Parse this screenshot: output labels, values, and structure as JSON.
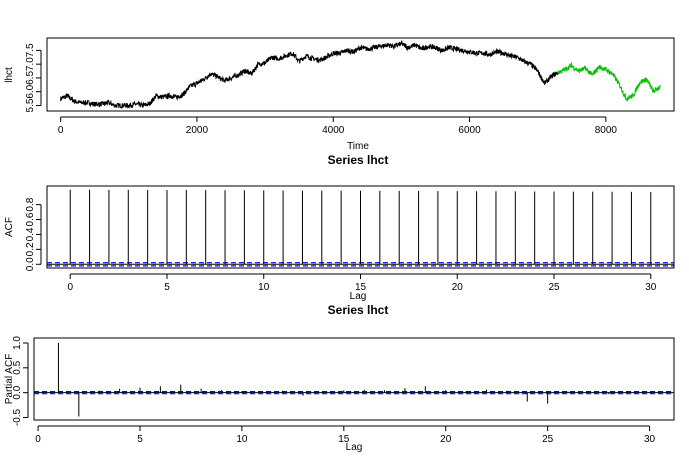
{
  "chart_data": [
    {
      "type": "line",
      "title": "",
      "xlabel": "Time",
      "ylabel": "lhct",
      "xlim": [
        -200,
        9000
      ],
      "ylim": [
        5.3,
        7.95
      ],
      "x_ticks": [
        0,
        2000,
        4000,
        6000,
        8000
      ],
      "y_ticks": [
        5.5,
        6.0,
        6.5,
        7.0,
        7.5
      ],
      "y_tick_labels": [
        "5.5",
        "6.0",
        "6.5",
        "7.0",
        "7.5"
      ],
      "series": [
        {
          "color": "#000000",
          "x": [
            0,
            100,
            200,
            300,
            400,
            500,
            600,
            700,
            800,
            900,
            1000,
            1100,
            1200,
            1300,
            1400,
            1500,
            1600,
            1700,
            1800,
            1900,
            2000,
            2100,
            2200,
            2300,
            2400,
            2500,
            2600,
            2700,
            2800,
            2900,
            3000,
            3100,
            3200,
            3300,
            3400,
            3500,
            3600,
            3700,
            3800,
            3900,
            4000,
            4100,
            4200,
            4300,
            4400,
            4500,
            4600,
            4700,
            4800,
            4900,
            5000,
            5100,
            5200,
            5300,
            5400,
            5500,
            5600,
            5700,
            5800,
            5900,
            6000,
            6100,
            6200,
            6300,
            6400,
            6500,
            6600,
            6700,
            6800,
            6900,
            7000,
            7100,
            7200,
            7300
          ],
          "y": [
            5.75,
            5.85,
            5.65,
            5.6,
            5.6,
            5.55,
            5.55,
            5.6,
            5.5,
            5.5,
            5.5,
            5.55,
            5.5,
            5.55,
            5.85,
            5.8,
            5.85,
            5.8,
            5.9,
            6.2,
            6.3,
            6.45,
            6.65,
            6.55,
            6.4,
            6.5,
            6.6,
            6.75,
            6.65,
            7.0,
            7.05,
            7.25,
            7.2,
            7.3,
            7.4,
            7.1,
            7.3,
            7.2,
            7.15,
            7.25,
            7.4,
            7.4,
            7.5,
            7.45,
            7.6,
            7.55,
            7.6,
            7.65,
            7.7,
            7.65,
            7.75,
            7.6,
            7.7,
            7.55,
            7.65,
            7.6,
            7.5,
            7.6,
            7.55,
            7.5,
            7.45,
            7.4,
            7.4,
            7.35,
            7.45,
            7.4,
            7.3,
            7.25,
            7.1,
            7.0,
            6.75,
            6.3,
            6.55,
            6.7
          ]
        },
        {
          "color": "#00c000",
          "x": [
            7300,
            7400,
            7500,
            7600,
            7700,
            7800,
            7900,
            8000,
            8100,
            8200,
            8300,
            8400,
            8500,
            8600,
            8700,
            8800
          ],
          "y": [
            6.7,
            6.8,
            6.95,
            6.75,
            6.85,
            6.6,
            6.9,
            6.8,
            6.65,
            6.25,
            5.75,
            5.85,
            6.35,
            6.45,
            6.0,
            6.2
          ]
        }
      ]
    },
    {
      "type": "bar",
      "title": "Series  lhct",
      "xlabel": "Lag",
      "ylabel": "ACF",
      "xlim": [
        -1.2,
        31.2
      ],
      "ylim": [
        -0.05,
        1.05
      ],
      "x_ticks": [
        0,
        5,
        10,
        15,
        20,
        25,
        30
      ],
      "y_ticks": [
        0.0,
        0.2,
        0.4,
        0.6,
        0.8
      ],
      "y_tick_labels": [
        "0.0",
        "0.2",
        "0.4",
        "0.6",
        "0.8"
      ],
      "confidence_band": 0.021,
      "lags": [
        0,
        1,
        2,
        3,
        4,
        5,
        6,
        7,
        8,
        9,
        10,
        11,
        12,
        13,
        14,
        15,
        16,
        17,
        18,
        19,
        20,
        21,
        22,
        23,
        24,
        25,
        26,
        27,
        28,
        29,
        30
      ],
      "values": [
        1.0,
        1.0,
        0.999,
        0.998,
        0.997,
        0.996,
        0.995,
        0.994,
        0.993,
        0.992,
        0.991,
        0.99,
        0.989,
        0.988,
        0.987,
        0.986,
        0.985,
        0.984,
        0.983,
        0.982,
        0.981,
        0.98,
        0.979,
        0.978,
        0.977,
        0.976,
        0.975,
        0.974,
        0.973,
        0.972,
        0.971
      ]
    },
    {
      "type": "bar",
      "title": "Series  lhct",
      "xlabel": "Lag",
      "ylabel": "Partial ACF",
      "xlim": [
        -0.2,
        31.2
      ],
      "ylim": [
        -0.55,
        1.1
      ],
      "x_ticks": [
        0,
        5,
        10,
        15,
        20,
        25,
        30
      ],
      "y_ticks": [
        -0.5,
        0.0,
        0.5,
        1.0
      ],
      "y_tick_labels": [
        "-0.5",
        "0.0",
        "0.5",
        "1.0"
      ],
      "confidence_band": 0.021,
      "lags": [
        1,
        2,
        3,
        4,
        5,
        6,
        7,
        8,
        9,
        10,
        11,
        12,
        13,
        14,
        15,
        16,
        17,
        18,
        19,
        20,
        21,
        22,
        23,
        24,
        25,
        26,
        27,
        28,
        29,
        30
      ],
      "values": [
        1.0,
        -0.48,
        0.04,
        0.08,
        0.1,
        0.13,
        0.16,
        0.08,
        0.05,
        0.03,
        0.02,
        0.04,
        -0.06,
        0.02,
        0.05,
        0.06,
        0.05,
        0.09,
        0.13,
        0.05,
        0.03,
        0.06,
        0.04,
        -0.18,
        -0.22,
        0.02,
        0.03,
        -0.03,
        0.02,
        0.01
      ]
    }
  ]
}
